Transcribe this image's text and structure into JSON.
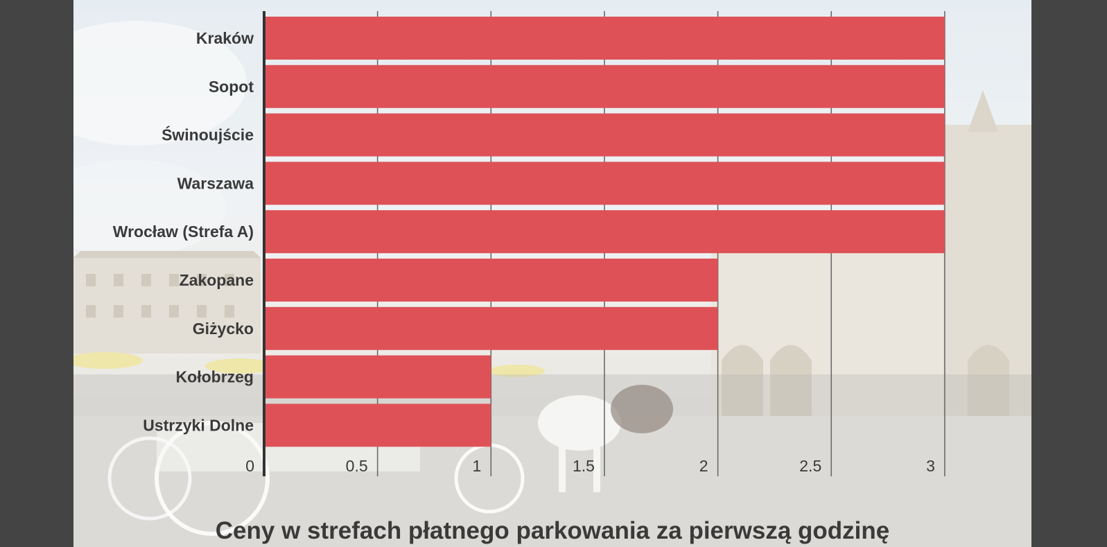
{
  "chart_data": {
    "type": "bar",
    "orientation": "horizontal",
    "title": "Ceny w strefach płatnego parkowania za pierwszą godzinę",
    "categories": [
      "Kraków",
      "Sopot",
      "Świnoujście",
      "Warszawa",
      "Wrocław (Strefa A)",
      "Zakopane",
      "Giżycko",
      "Kołobrzeg",
      "Ustrzyki Dolne"
    ],
    "values": [
      3,
      3,
      3,
      3,
      3,
      2,
      2,
      1,
      1
    ],
    "xlim": [
      0,
      3.25
    ],
    "xticks": [
      "0",
      "0.5",
      "1",
      "1.5",
      "2",
      "2.5",
      "3"
    ],
    "xlabel": "",
    "ylabel": "",
    "grid": true,
    "legend": "none",
    "bar_color": "#de5257"
  },
  "background": {
    "description_icon": "krakow-market-square-photo-icon"
  }
}
